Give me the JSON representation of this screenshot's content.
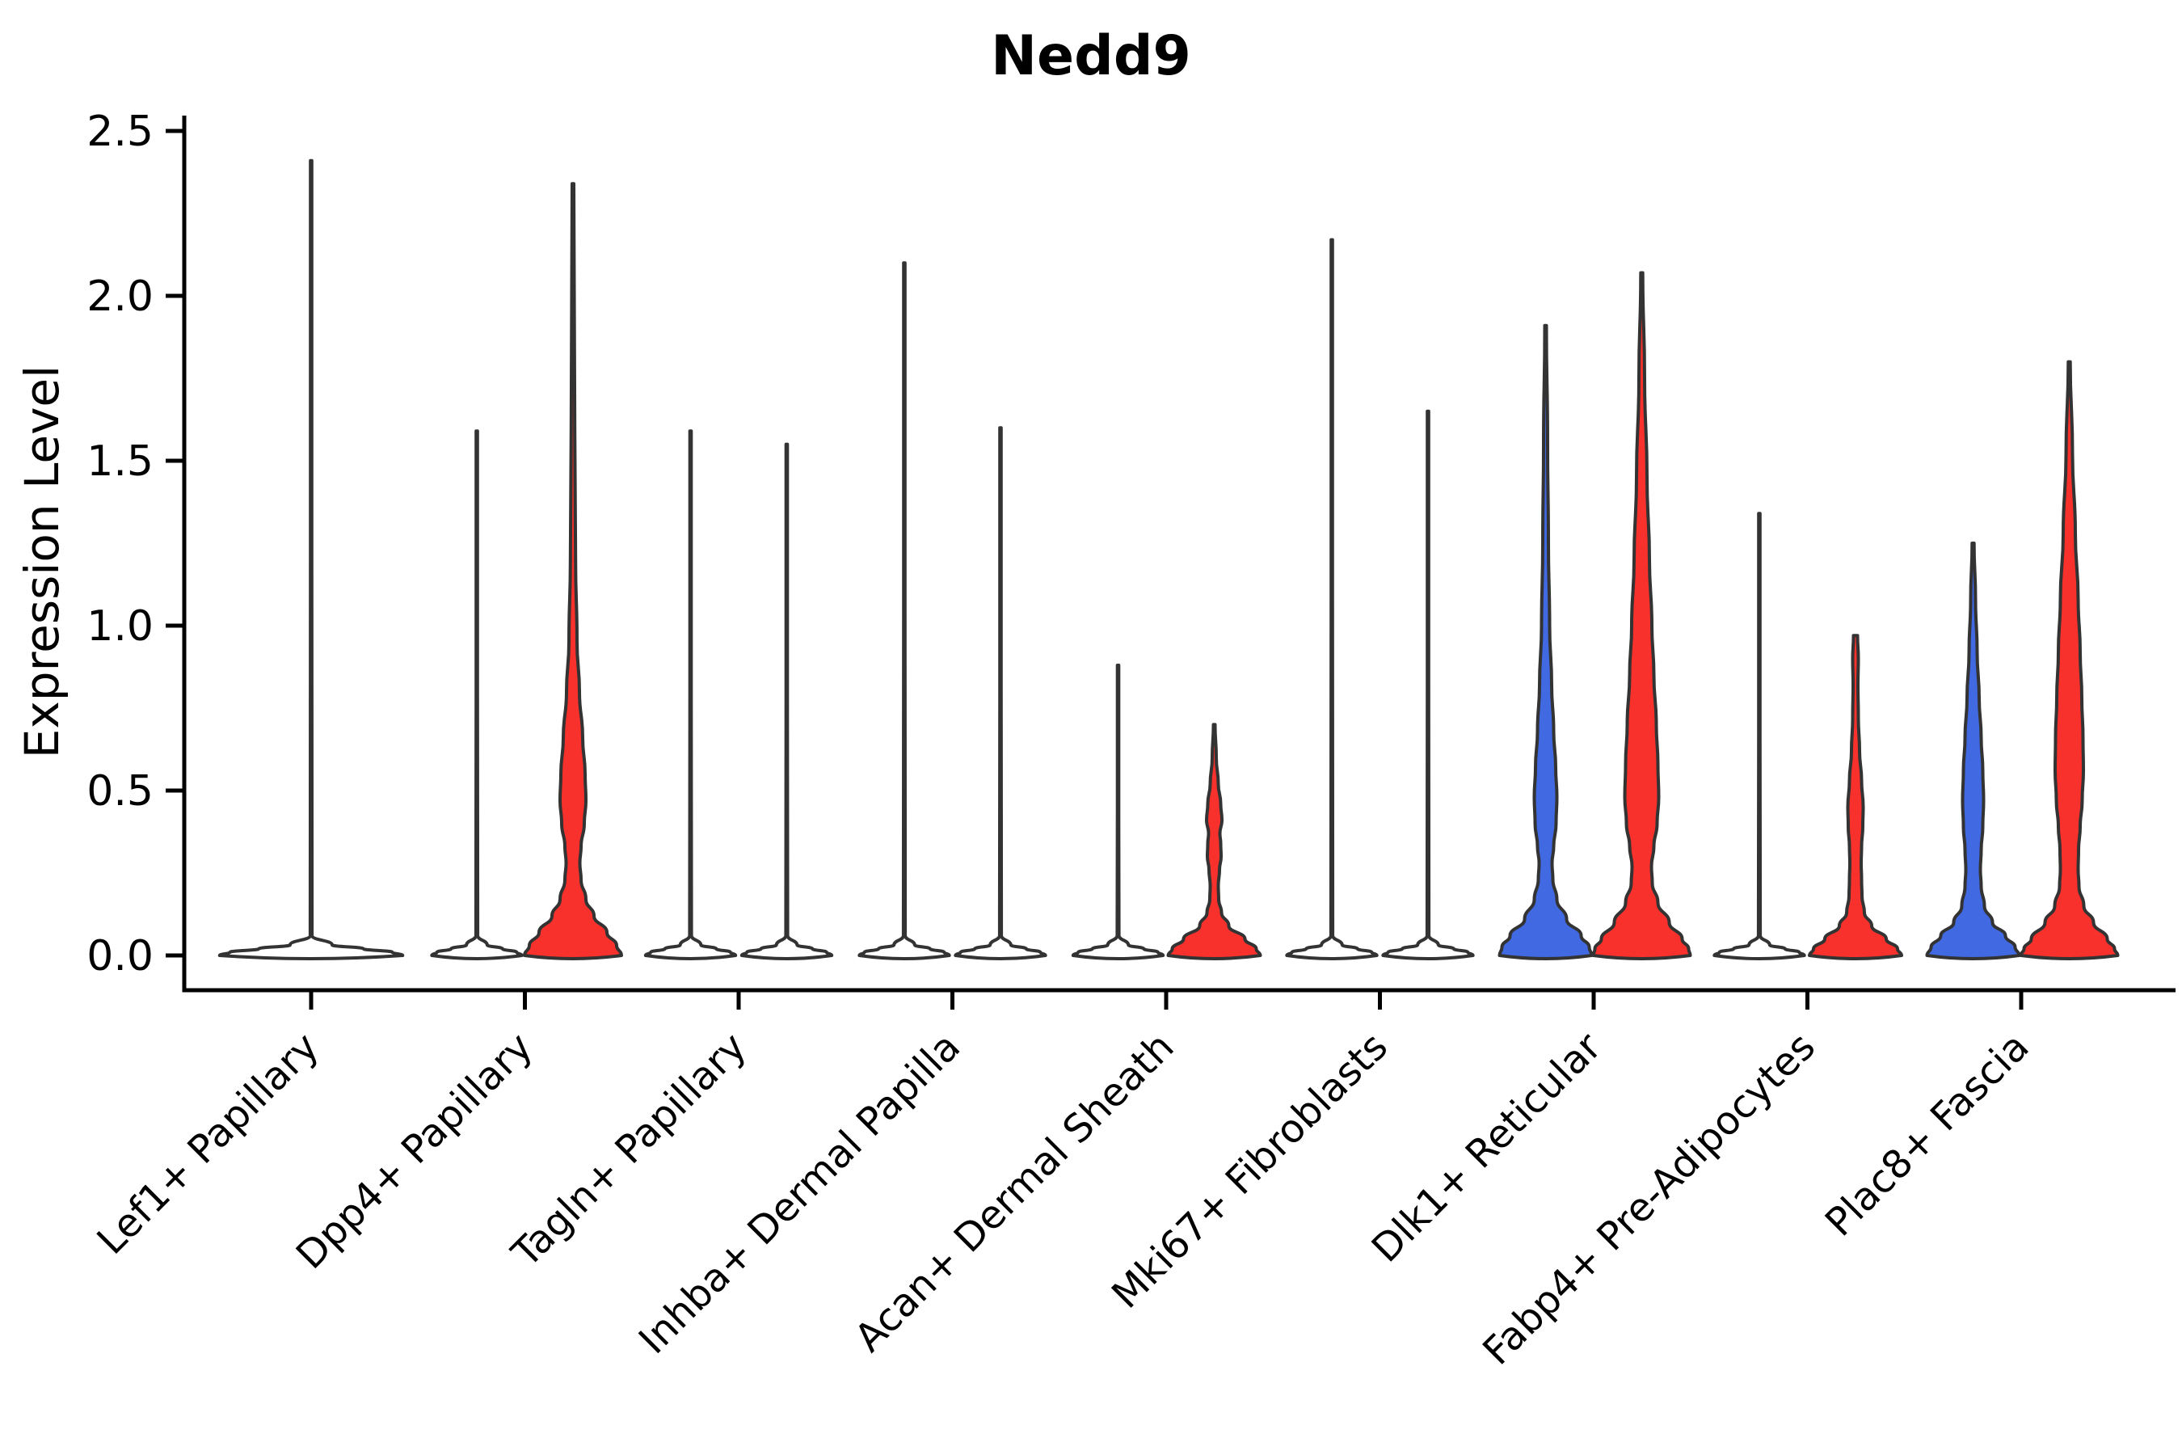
{
  "title": "Nedd9",
  "y_axis_label": "Expression Level",
  "colors": {
    "red": "#F8312D",
    "blue": "#4169E1",
    "flat_fill": "#FFFFFF",
    "stroke": "#333333",
    "axis": "#000000"
  },
  "chart_data": {
    "type": "violin",
    "title": "Nedd9",
    "xlabel": "",
    "ylabel": "Expression Level",
    "ylim": [
      0,
      2.5
    ],
    "yticks": [
      0.0,
      0.5,
      1.0,
      1.5,
      2.0,
      2.5
    ],
    "ytick_labels": [
      "0.0",
      "0.5",
      "1.0",
      "1.5",
      "2.0",
      "2.5"
    ],
    "grid": "off",
    "legend": "none",
    "categories": [
      "Lef1+ Papillary",
      "Dpp4+ Papillary",
      "Tagln+ Papillary",
      "Inhba+ Dermal Papilla",
      "Acan+ Dermal Sheath",
      "Mki67+ Fibroblasts",
      "Dlk1+ Reticular",
      "Fabp4+ Pre-Adipocytes",
      "Plac8+ Fascia"
    ],
    "violin_description": "Each category holds up to two dodged violins (left/right). Most density is at expression 0; 'flat' violins are a thin line at 0 with a single spike to max_expression. 'curved' violins carry a profile of [expression_value, half_width_px] pairs read from the image.",
    "violins": [
      {
        "category": "Lef1+ Papillary",
        "slot": "full",
        "color": "none",
        "shape": "flat",
        "max_expression": 2.41
      },
      {
        "category": "Dpp4+ Papillary",
        "slot": "left",
        "color": "none",
        "shape": "flat",
        "max_expression": 1.59
      },
      {
        "category": "Dpp4+ Papillary",
        "slot": "right",
        "color": "red",
        "shape": "curved",
        "max_expression": 2.34,
        "profile": [
          [
            2.34,
            1
          ],
          [
            1.6,
            2.2
          ],
          [
            1.2,
            3.2
          ],
          [
            0.95,
            5
          ],
          [
            0.8,
            8
          ],
          [
            0.66,
            12
          ],
          [
            0.55,
            15
          ],
          [
            0.47,
            16
          ],
          [
            0.4,
            14
          ],
          [
            0.33,
            10
          ],
          [
            0.28,
            8.5
          ],
          [
            0.23,
            10
          ],
          [
            0.17,
            16
          ],
          [
            0.12,
            26
          ],
          [
            0.07,
            42
          ],
          [
            0.03,
            54
          ],
          [
            0,
            60
          ]
        ]
      },
      {
        "category": "Tagln+ Papillary",
        "slot": "left",
        "color": "none",
        "shape": "flat",
        "max_expression": 1.59
      },
      {
        "category": "Tagln+ Papillary",
        "slot": "right",
        "color": "none",
        "shape": "flat",
        "max_expression": 1.55
      },
      {
        "category": "Inhba+ Dermal Papilla",
        "slot": "left",
        "color": "none",
        "shape": "flat",
        "max_expression": 2.1
      },
      {
        "category": "Inhba+ Dermal Papilla",
        "slot": "right",
        "color": "none",
        "shape": "flat",
        "max_expression": 1.6
      },
      {
        "category": "Acan+ Dermal Sheath",
        "slot": "left",
        "color": "none",
        "shape": "flat",
        "max_expression": 0.88
      },
      {
        "category": "Acan+ Dermal Sheath",
        "slot": "right",
        "color": "red",
        "shape": "curved",
        "max_expression": 0.7,
        "profile": [
          [
            0.7,
            1
          ],
          [
            0.6,
            2.5
          ],
          [
            0.52,
            5
          ],
          [
            0.46,
            8
          ],
          [
            0.41,
            9.5
          ],
          [
            0.37,
            7
          ],
          [
            0.34,
            8
          ],
          [
            0.3,
            8.5
          ],
          [
            0.26,
            6.5
          ],
          [
            0.21,
            5
          ],
          [
            0.17,
            5.5
          ],
          [
            0.13,
            9
          ],
          [
            0.09,
            18
          ],
          [
            0.05,
            38
          ],
          [
            0.02,
            52
          ],
          [
            0,
            57
          ]
        ]
      },
      {
        "category": "Mki67+ Fibroblasts",
        "slot": "left",
        "color": "none",
        "shape": "flat",
        "max_expression": 2.17
      },
      {
        "category": "Mki67+ Fibroblasts",
        "slot": "right",
        "color": "none",
        "shape": "flat",
        "max_expression": 1.65
      },
      {
        "category": "Dlk1+ Reticular",
        "slot": "left",
        "color": "blue",
        "shape": "curved",
        "max_expression": 1.91,
        "profile": [
          [
            1.91,
            1
          ],
          [
            1.55,
            2.5
          ],
          [
            1.25,
            3.5
          ],
          [
            1.0,
            5
          ],
          [
            0.82,
            7.5
          ],
          [
            0.68,
            10
          ],
          [
            0.57,
            12.5
          ],
          [
            0.48,
            14
          ],
          [
            0.4,
            13
          ],
          [
            0.33,
            10
          ],
          [
            0.28,
            8
          ],
          [
            0.23,
            9
          ],
          [
            0.17,
            14
          ],
          [
            0.11,
            26
          ],
          [
            0.06,
            44
          ],
          [
            0.025,
            54
          ],
          [
            0,
            57
          ]
        ]
      },
      {
        "category": "Dlk1+ Reticular",
        "slot": "right",
        "color": "red",
        "shape": "curved",
        "max_expression": 2.07,
        "profile": [
          [
            2.07,
            1.2
          ],
          [
            1.75,
            3.5
          ],
          [
            1.45,
            6.5
          ],
          [
            1.2,
            9.5
          ],
          [
            1.0,
            12.5
          ],
          [
            0.85,
            15
          ],
          [
            0.7,
            18
          ],
          [
            0.58,
            20
          ],
          [
            0.48,
            21
          ],
          [
            0.4,
            19
          ],
          [
            0.33,
            15
          ],
          [
            0.27,
            12
          ],
          [
            0.22,
            13
          ],
          [
            0.16,
            20
          ],
          [
            0.1,
            34
          ],
          [
            0.05,
            50
          ],
          [
            0.02,
            58
          ],
          [
            0,
            60
          ]
        ]
      },
      {
        "category": "Fabp4+ Pre-Adipocytes",
        "slot": "left",
        "color": "none",
        "shape": "flat",
        "max_expression": 1.34
      },
      {
        "category": "Fabp4+ Pre-Adipocytes",
        "slot": "right",
        "color": "red",
        "shape": "curved",
        "max_expression": 0.97,
        "profile": [
          [
            0.97,
            2.5
          ],
          [
            0.9,
            3.5
          ],
          [
            0.82,
            3
          ],
          [
            0.72,
            3.5
          ],
          [
            0.62,
            5
          ],
          [
            0.53,
            7.5
          ],
          [
            0.45,
            9.5
          ],
          [
            0.39,
            9
          ],
          [
            0.33,
            7.5
          ],
          [
            0.28,
            7
          ],
          [
            0.23,
            7.5
          ],
          [
            0.18,
            8
          ],
          [
            0.13,
            11
          ],
          [
            0.09,
            20
          ],
          [
            0.05,
            38
          ],
          [
            0.02,
            52
          ],
          [
            0,
            57
          ]
        ]
      },
      {
        "category": "Plac8+ Fascia",
        "slot": "left",
        "color": "blue",
        "shape": "curved",
        "max_expression": 1.25,
        "profile": [
          [
            1.25,
            1.2
          ],
          [
            1.08,
            3
          ],
          [
            0.92,
            5
          ],
          [
            0.78,
            7.5
          ],
          [
            0.66,
            10
          ],
          [
            0.56,
            12
          ],
          [
            0.47,
            13
          ],
          [
            0.39,
            12
          ],
          [
            0.32,
            10
          ],
          [
            0.26,
            9
          ],
          [
            0.21,
            10
          ],
          [
            0.15,
            14
          ],
          [
            0.1,
            24
          ],
          [
            0.06,
            40
          ],
          [
            0.025,
            52
          ],
          [
            0,
            57
          ]
        ]
      },
      {
        "category": "Plac8+ Fascia",
        "slot": "right",
        "color": "red",
        "shape": "curved",
        "max_expression": 1.8,
        "profile": [
          [
            1.8,
            1.2
          ],
          [
            1.52,
            4
          ],
          [
            1.28,
            7.5
          ],
          [
            1.08,
            11
          ],
          [
            0.92,
            13.5
          ],
          [
            0.78,
            15.5
          ],
          [
            0.66,
            17
          ],
          [
            0.56,
            17.5
          ],
          [
            0.47,
            16
          ],
          [
            0.39,
            13.5
          ],
          [
            0.32,
            11.5
          ],
          [
            0.26,
            11
          ],
          [
            0.21,
            12
          ],
          [
            0.15,
            18
          ],
          [
            0.1,
            30
          ],
          [
            0.05,
            47
          ],
          [
            0.02,
            56
          ],
          [
            0,
            60
          ]
        ]
      }
    ]
  }
}
